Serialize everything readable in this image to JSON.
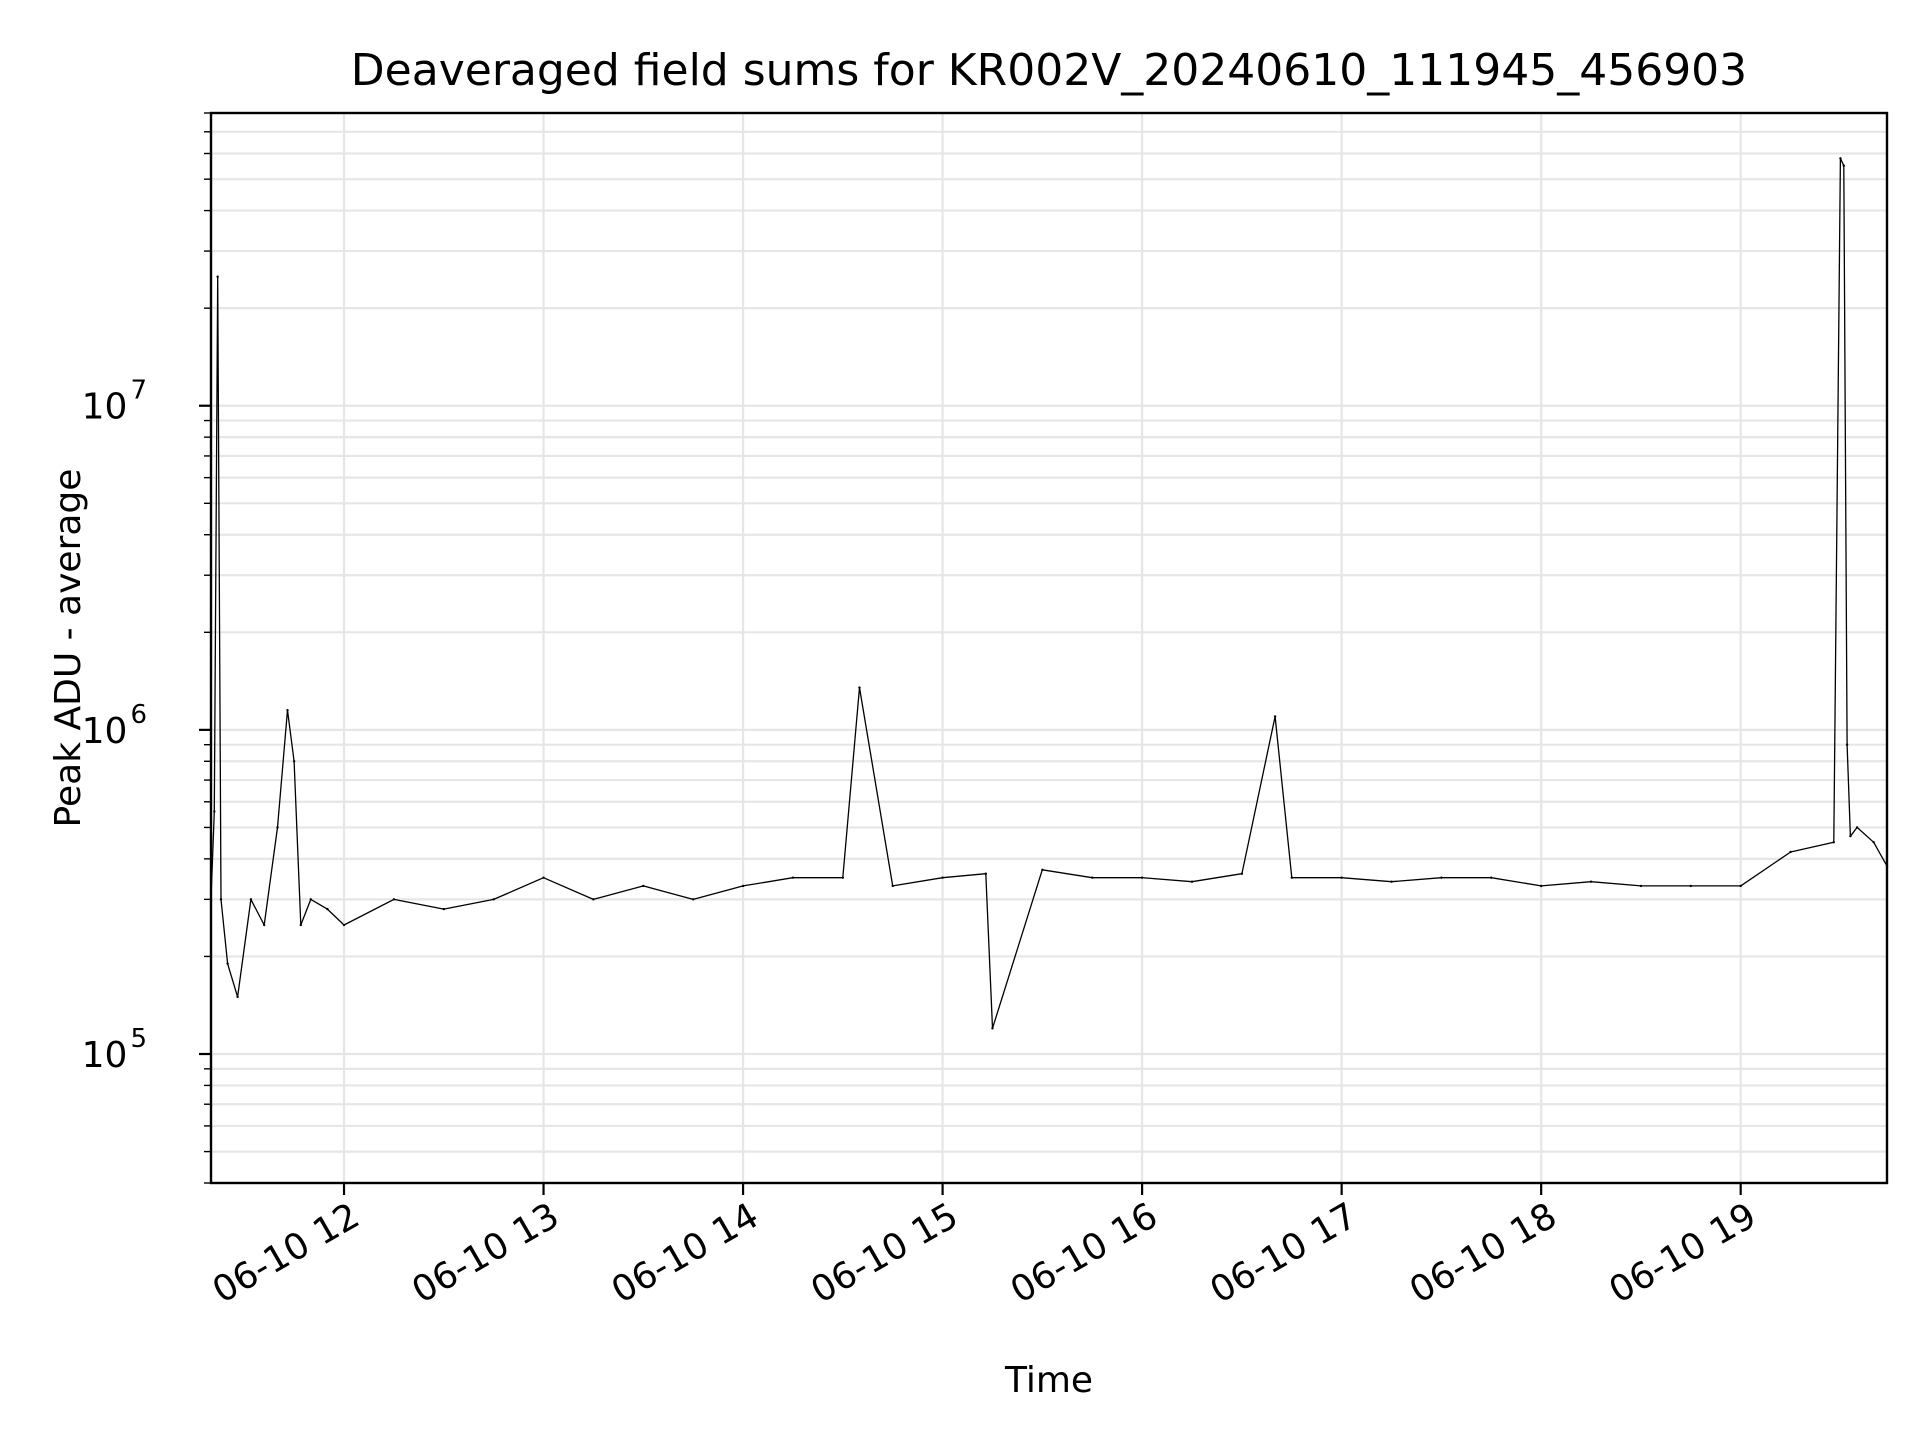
{
  "chart_data": {
    "type": "line",
    "title": "Deaveraged field sums for KR002V_20240610_111945_456903",
    "xlabel": "Time",
    "ylabel": "Peak ADU - average",
    "x_range": [
      "2024-06-10 11:20",
      "2024-06-10 19:44"
    ],
    "y_scale": "log",
    "ylim": [
      40000,
      80000000
    ],
    "grid": true,
    "grid_minor_y": true,
    "line_color": "#000000",
    "x_ticks": [
      {
        "time": "2024-06-10 12:00",
        "label": "06-10 12"
      },
      {
        "time": "2024-06-10 13:00",
        "label": "06-10 13"
      },
      {
        "time": "2024-06-10 14:00",
        "label": "06-10 14"
      },
      {
        "time": "2024-06-10 15:00",
        "label": "06-10 15"
      },
      {
        "time": "2024-06-10 16:00",
        "label": "06-10 16"
      },
      {
        "time": "2024-06-10 17:00",
        "label": "06-10 17"
      },
      {
        "time": "2024-06-10 18:00",
        "label": "06-10 18"
      },
      {
        "time": "2024-06-10 19:00",
        "label": "06-10 19"
      }
    ],
    "y_ticks": [
      {
        "value": 100000,
        "base": "10",
        "exp": "5"
      },
      {
        "value": 1000000,
        "base": "10",
        "exp": "6"
      },
      {
        "value": 10000000,
        "base": "10",
        "exp": "7"
      }
    ],
    "series": [
      {
        "x": [
          "2024-06-10 11:20",
          "2024-06-10 11:21",
          "2024-06-10 11:22",
          "2024-06-10 11:23",
          "2024-06-10 11:25",
          "2024-06-10 11:28",
          "2024-06-10 11:32",
          "2024-06-10 11:36",
          "2024-06-10 11:40",
          "2024-06-10 11:43",
          "2024-06-10 11:45",
          "2024-06-10 11:47",
          "2024-06-10 11:50",
          "2024-06-10 11:55",
          "2024-06-10 12:00",
          "2024-06-10 12:15",
          "2024-06-10 12:30",
          "2024-06-10 12:45",
          "2024-06-10 13:00",
          "2024-06-10 13:15",
          "2024-06-10 13:30",
          "2024-06-10 13:45",
          "2024-06-10 14:00",
          "2024-06-10 14:15",
          "2024-06-10 14:30",
          "2024-06-10 14:35",
          "2024-06-10 14:45",
          "2024-06-10 15:00",
          "2024-06-10 15:13",
          "2024-06-10 15:15",
          "2024-06-10 15:30",
          "2024-06-10 15:45",
          "2024-06-10 16:00",
          "2024-06-10 16:15",
          "2024-06-10 16:30",
          "2024-06-10 16:40",
          "2024-06-10 16:45",
          "2024-06-10 17:00",
          "2024-06-10 17:15",
          "2024-06-10 17:30",
          "2024-06-10 17:45",
          "2024-06-10 18:00",
          "2024-06-10 18:15",
          "2024-06-10 18:30",
          "2024-06-10 18:45",
          "2024-06-10 19:00",
          "2024-06-10 19:15",
          "2024-06-10 19:28",
          "2024-06-10 19:30",
          "2024-06-10 19:31",
          "2024-06-10 19:32",
          "2024-06-10 19:33",
          "2024-06-10 19:35",
          "2024-06-10 19:40",
          "2024-06-10 19:44"
        ],
        "y": [
          300000,
          560000,
          25000000,
          300000,
          190000,
          150000,
          300000,
          250000,
          500000,
          1150000,
          800000,
          250000,
          300000,
          280000,
          250000,
          300000,
          280000,
          300000,
          350000,
          300000,
          330000,
          300000,
          330000,
          350000,
          350000,
          1350000,
          330000,
          350000,
          360000,
          120000,
          370000,
          350000,
          350000,
          340000,
          360000,
          1100000,
          350000,
          350000,
          340000,
          350000,
          350000,
          330000,
          340000,
          330000,
          330000,
          330000,
          420000,
          450000,
          58000000,
          55000000,
          900000,
          470000,
          500000,
          450000,
          380000
        ]
      }
    ]
  }
}
